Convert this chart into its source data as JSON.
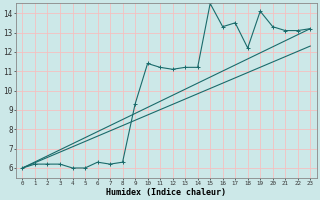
{
  "title": "",
  "xlabel": "Humidex (Indice chaleur)",
  "ylabel": "",
  "bg_color": "#cce8e8",
  "line_color": "#1a6b6b",
  "grid_color": "#f5c0c0",
  "xlim": [
    -0.5,
    23.5
  ],
  "ylim": [
    5.5,
    14.5
  ],
  "xticks": [
    0,
    1,
    2,
    3,
    4,
    5,
    6,
    7,
    8,
    9,
    10,
    11,
    12,
    13,
    14,
    15,
    16,
    17,
    18,
    19,
    20,
    21,
    22,
    23
  ],
  "yticks": [
    6,
    7,
    8,
    9,
    10,
    11,
    12,
    13,
    14
  ],
  "series": [
    {
      "x": [
        0,
        1,
        2,
        3,
        4,
        5,
        6,
        7,
        8,
        9,
        10,
        11,
        12,
        13,
        14,
        15,
        16,
        17,
        18,
        19,
        20,
        21,
        22,
        23
      ],
      "y": [
        6,
        6.2,
        6.2,
        6.2,
        6.0,
        6.0,
        6.3,
        6.2,
        6.3,
        9.3,
        11.4,
        11.2,
        11.1,
        11.2,
        11.2,
        14.5,
        13.3,
        13.5,
        12.2,
        14.1,
        13.3,
        13.1,
        13.1,
        13.2
      ],
      "marker": "+"
    },
    {
      "x": [
        0,
        23
      ],
      "y": [
        6,
        13.2
      ],
      "marker": null
    },
    {
      "x": [
        0,
        23
      ],
      "y": [
        6,
        12.3
      ],
      "marker": null
    }
  ]
}
